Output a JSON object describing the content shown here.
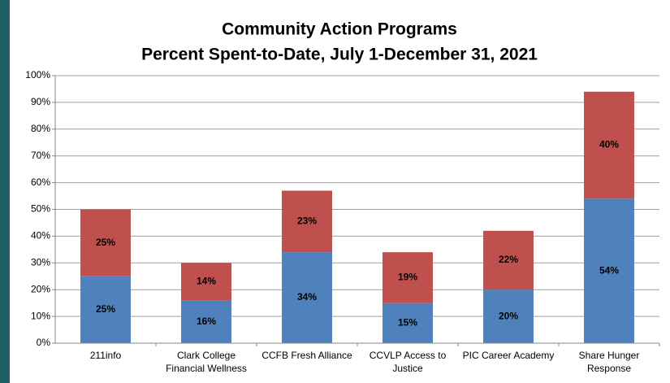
{
  "chart_data": {
    "type": "stacked_bar",
    "title": "Community Action Programs",
    "subtitle": "Percent Spent-to-Date, July 1-December 31, 2021",
    "categories": [
      "211info",
      "Clark College\nFinancial Wellness",
      "CCFB Fresh Alliance",
      "CCVLP Access to\nJustice",
      "PIC Career Academy",
      "Share Hunger\nResponse"
    ],
    "series": [
      {
        "color": "#4f81bd",
        "values": [
          25,
          16,
          34,
          15,
          20,
          54
        ],
        "value_labels": [
          "25%",
          "16%",
          "34%",
          "15%",
          "20%",
          "54%"
        ]
      },
      {
        "color": "#c0504d",
        "values": [
          25,
          14,
          23,
          19,
          22,
          40
        ],
        "value_labels": [
          "25%",
          "14%",
          "23%",
          "19%",
          "22%",
          "40%"
        ]
      }
    ],
    "ylim": [
      0,
      100
    ],
    "yticks": [
      {
        "value": 0,
        "label": "0%"
      },
      {
        "value": 10,
        "label": "10%"
      },
      {
        "value": 20,
        "label": "20%"
      },
      {
        "value": 30,
        "label": "30%"
      },
      {
        "value": 40,
        "label": "40%"
      },
      {
        "value": 50,
        "label": "50%"
      },
      {
        "value": 60,
        "label": "60%"
      },
      {
        "value": 70,
        "label": "70%"
      },
      {
        "value": 80,
        "label": "80%"
      },
      {
        "value": 90,
        "label": "90%"
      },
      {
        "value": 100,
        "label": "100%"
      }
    ],
    "grid": true
  }
}
